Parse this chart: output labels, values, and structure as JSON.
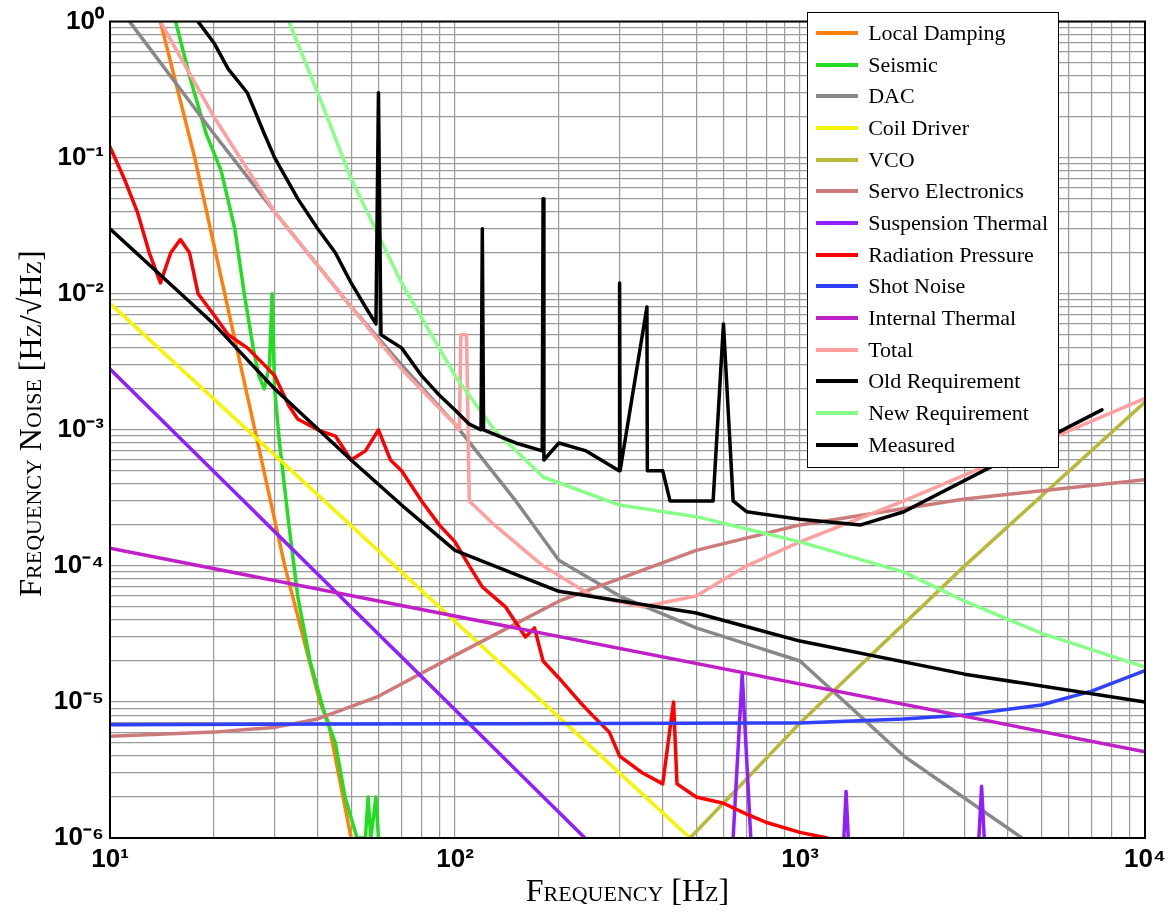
{
  "chart_data": {
    "type": "line",
    "xlabel": "Frequency [Hz]",
    "ylabel": "Frequency Noise [Hz/√Hz]",
    "log": "xy",
    "grid": true,
    "legend": "top right",
    "marker": "none",
    "xlim": [
      10,
      10000
    ],
    "xticks": [
      {
        "value": 10,
        "label": "10¹"
      },
      {
        "value": 100,
        "label": "10²"
      },
      {
        "value": 1000,
        "label": "10³"
      },
      {
        "value": 10000,
        "label": "10⁴"
      }
    ],
    "ylim": [
      1e-06,
      1
    ],
    "yticks": [
      {
        "value": 1e-06,
        "label": "10⁻⁶"
      },
      {
        "value": 1e-05,
        "label": "10⁻⁵"
      },
      {
        "value": 0.0001,
        "label": "10⁻⁴"
      },
      {
        "value": 0.001,
        "label": "10⁻³"
      },
      {
        "value": 0.01,
        "label": "10⁻²"
      },
      {
        "value": 0.1,
        "label": "10⁻¹"
      },
      {
        "value": 1,
        "label": "10⁰"
      }
    ],
    "series": [
      {
        "name": "Local Damping",
        "color": "#ff7f0e",
        "x": [
          14,
          17.6,
          21.5,
          26.3,
          32.1,
          40.6,
          43,
          50
        ],
        "values": [
          1,
          0.1,
          0.01,
          0.001,
          0.0001,
          1e-05,
          7e-06,
          1e-06
        ]
      },
      {
        "name": "Seismic",
        "color": "#22dd22",
        "x": [
          15.5,
          17,
          19,
          21,
          23,
          24.5,
          26,
          27,
          28,
          29,
          29.5,
          30,
          31,
          33,
          35,
          38,
          42,
          45,
          48,
          52,
          55,
          56,
          57,
          59,
          60
        ],
        "values": [
          1,
          0.4,
          0.15,
          0.08,
          0.03,
          0.01,
          0.004,
          0.0025,
          0.002,
          0.003,
          0.01,
          0.002,
          0.0008,
          0.0002,
          6e-05,
          2e-05,
          8e-06,
          5e-06,
          2e-06,
          1e-06,
          1e-06,
          2e-06,
          1e-06,
          2e-06,
          1e-06
        ]
      },
      {
        "name": "DAC",
        "color": "#888888",
        "x": [
          11.4,
          20,
          30,
          50,
          70,
          100,
          150,
          200,
          300,
          500,
          1000,
          2000,
          4400
        ],
        "values": [
          1,
          0.15,
          0.04,
          0.008,
          0.003,
          0.0011,
          0.0003,
          0.00011,
          6e-05,
          3.5e-05,
          2e-05,
          4e-06,
          1e-06
        ]
      },
      {
        "name": "Coil Driver",
        "color": "#f5f500",
        "x": [
          10,
          480
        ],
        "values": [
          0.0085,
          1e-06
        ]
      },
      {
        "name": "VCO",
        "color": "#b8b83a",
        "x": [
          480,
          1000,
          3000,
          10000
        ],
        "values": [
          1e-06,
          7e-06,
          0.0001,
          0.0016
        ]
      },
      {
        "name": "Servo Electronics",
        "color": "#cc7a7a",
        "x": [
          10,
          20,
          30,
          40,
          60,
          100,
          200,
          500,
          1000,
          3000,
          10000
        ],
        "values": [
          5.6e-06,
          6e-06,
          6.5e-06,
          7.5e-06,
          1.1e-05,
          2.2e-05,
          5.5e-05,
          0.00013,
          0.0002,
          0.00031,
          0.00043
        ]
      },
      {
        "name": "Suspension Thermal",
        "color": "#8f1fff",
        "x": [
          10,
          238,
          300,
          640,
          680,
          720,
          1000,
          1340,
          1360,
          1380,
          2000,
          3300,
          3360,
          3420
        ],
        "values": [
          0.0028,
          1e-06,
          null,
          1e-06,
          1.6e-05,
          1e-06,
          null,
          1e-06,
          2.2e-06,
          1e-06,
          null,
          1e-06,
          2.4e-06,
          1e-06
        ]
      },
      {
        "name": "Radiation Pressure",
        "color": "#ff0000",
        "x": [
          10,
          11,
          12,
          13,
          14,
          15,
          16,
          17,
          18,
          20,
          22,
          25,
          28,
          30,
          33,
          35,
          40,
          45,
          50,
          55,
          60,
          65,
          70,
          80,
          90,
          100,
          110,
          120,
          140,
          160,
          170,
          180,
          200,
          230,
          250,
          280,
          300,
          350,
          400,
          430,
          440,
          500,
          600,
          700,
          800,
          1000,
          1200
        ],
        "values": [
          0.12,
          0.07,
          0.04,
          0.02,
          0.012,
          0.02,
          0.025,
          0.02,
          0.01,
          0.007,
          0.005,
          0.004,
          0.003,
          0.0025,
          0.0015,
          0.0012,
          0.001,
          0.0009,
          0.0006,
          0.0007,
          0.001,
          0.0006,
          0.0005,
          0.0003,
          0.0002,
          0.00015,
          0.0001,
          7e-05,
          5e-05,
          3e-05,
          3.5e-05,
          2e-05,
          1.5e-05,
          1e-05,
          8e-06,
          6e-06,
          4e-06,
          3e-06,
          2.5e-06,
          1e-05,
          2.5e-06,
          2e-06,
          1.8e-06,
          1.5e-06,
          1.3e-06,
          1.1e-06,
          1e-06
        ]
      },
      {
        "name": "Shot Noise",
        "color": "#3040ff",
        "x": [
          10,
          100,
          1000,
          2000,
          3000,
          5000,
          7000,
          10000
        ],
        "values": [
          6.8e-06,
          6.9e-06,
          7e-06,
          7.5e-06,
          8e-06,
          9.5e-06,
          1.2e-05,
          1.7e-05
        ]
      },
      {
        "name": "Internal Thermal",
        "color": "#c020c8",
        "x": [
          10,
          10000
        ],
        "values": [
          0.000135,
          4.3e-06
        ]
      },
      {
        "name": "Total",
        "color": "#ff9f9f",
        "x": [
          14,
          20,
          30,
          50,
          70,
          100,
          103,
          104,
          108,
          110,
          130,
          180,
          250,
          350,
          500,
          700,
          1000,
          2000,
          10000
        ],
        "values": [
          1,
          0.2,
          0.04,
          0.008,
          0.0028,
          0.0011,
          0.001,
          0.005,
          0.005,
          0.0003,
          0.0002,
          0.0001,
          6e-05,
          5e-05,
          6e-05,
          0.0001,
          0.00015,
          0.0003,
          0.0017
        ]
      },
      {
        "name": "Old Requirement",
        "color": "#000000",
        "x": [
          10,
          20,
          30,
          50,
          70,
          100,
          200,
          500,
          1000,
          3000,
          10000
        ],
        "values": [
          0.03,
          0.006,
          0.002,
          0.0006,
          0.00028,
          0.00013,
          6.5e-05,
          4.5e-05,
          2.8e-05,
          1.6e-05,
          1e-05
        ]
      },
      {
        "name": "New Requirement",
        "color": "#88ff88",
        "x": [
          33,
          40,
          50,
          70,
          100,
          130,
          180,
          300,
          500,
          1000,
          2000,
          3000,
          5000,
          10000
        ],
        "values": [
          1,
          0.3,
          0.07,
          0.012,
          0.0025,
          0.001,
          0.00045,
          0.00028,
          0.00023,
          0.00015,
          9e-05,
          5.5e-05,
          3.2e-05,
          1.8e-05
        ]
      },
      {
        "name": "Measured",
        "color": "#000000",
        "x": [
          18,
          20,
          22,
          25,
          28,
          30,
          35,
          40,
          45,
          50,
          55,
          59,
          60,
          61,
          70,
          80,
          90,
          100,
          110,
          119,
          120,
          121,
          150,
          179,
          180,
          181,
          200,
          240,
          299,
          300,
          301,
          360,
          361,
          400,
          420,
          480,
          560,
          600,
          640,
          700,
          1000,
          1500,
          2000,
          7500
        ],
        "values": [
          1,
          0.7,
          0.45,
          0.3,
          0.15,
          0.1,
          0.05,
          0.03,
          0.02,
          0.012,
          0.008,
          0.006,
          0.3,
          0.005,
          0.004,
          0.0025,
          0.0018,
          0.0014,
          0.0011,
          0.001,
          0.03,
          0.001,
          0.0008,
          0.0007,
          0.05,
          0.0006,
          0.0008,
          0.0007,
          0.0005,
          0.012,
          0.0005,
          0.008,
          0.0005,
          0.0005,
          0.0003,
          0.0003,
          0.0003,
          0.006,
          0.0003,
          0.00025,
          0.00022,
          0.0002,
          0.00025,
          0.0014
        ]
      }
    ]
  }
}
